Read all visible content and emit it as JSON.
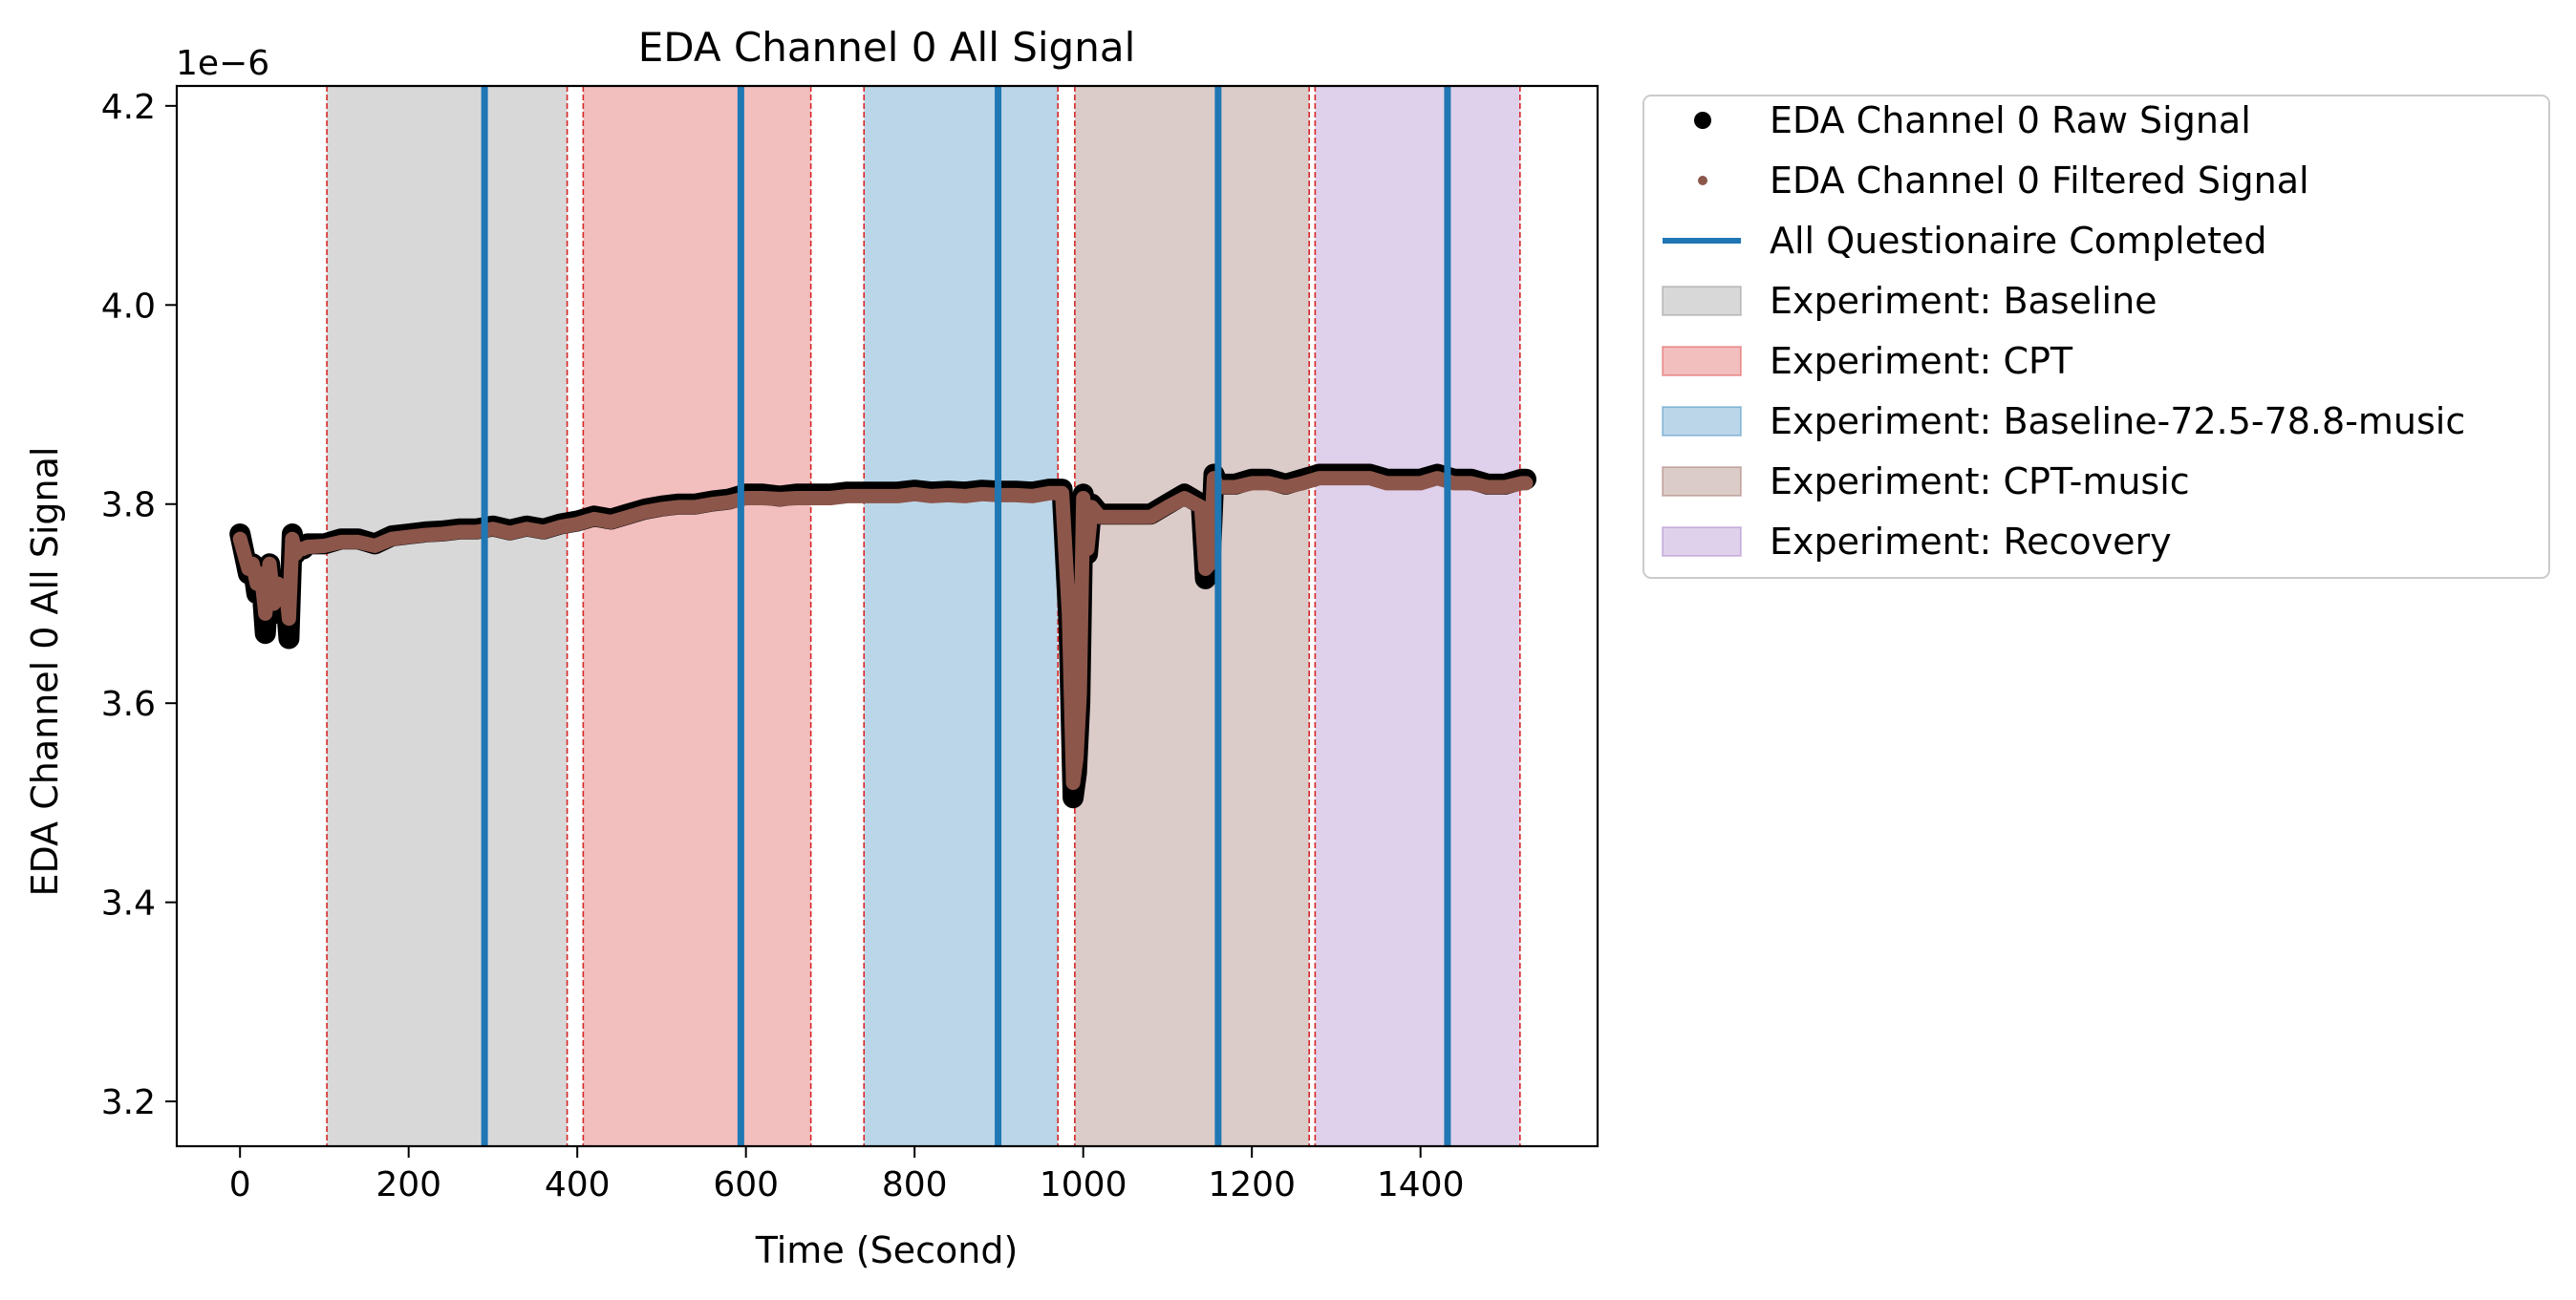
{
  "chart_data": {
    "type": "line",
    "title": "EDA Channel 0 All Signal",
    "xlabel": "Time (Second)",
    "ylabel": "EDA Channel 0 All Signal",
    "y_offset_label": "1e−6",
    "xlim": [
      -75,
      1610
    ],
    "ylim": [
      3.155,
      4.22
    ],
    "x_ticks": [
      0,
      200,
      400,
      600,
      800,
      1000,
      1200,
      1400
    ],
    "y_ticks": [
      3.2,
      3.4,
      3.6,
      3.8,
      4.0,
      4.2
    ],
    "y_tick_labels": [
      "3.2",
      "3.4",
      "3.6",
      "3.8",
      "4.0",
      "4.2"
    ],
    "legend": {
      "position": "outside-upper-right",
      "entries": [
        {
          "label": "EDA Channel 0 Raw Signal",
          "kind": "marker",
          "color": "#000000"
        },
        {
          "label": "EDA Channel 0 Filtered Signal",
          "kind": "small-marker",
          "color": "#8c564b"
        },
        {
          "label": "All Questionaire Completed",
          "kind": "line",
          "color": "#1f77b4"
        },
        {
          "label": "Experiment: Baseline",
          "kind": "patch",
          "color": "#7f7f7f"
        },
        {
          "label": "Experiment: CPT",
          "kind": "patch",
          "color": "#d62728"
        },
        {
          "label": "Experiment: Baseline-72.5-78.8-music",
          "kind": "patch",
          "color": "#1f77b4"
        },
        {
          "label": "Experiment: CPT-music",
          "kind": "patch",
          "color": "#8c564b"
        },
        {
          "label": "Experiment: Recovery",
          "kind": "patch",
          "color": "#9467bd"
        }
      ]
    },
    "regions": [
      {
        "name": "Baseline",
        "start": 103,
        "end": 388,
        "color": "#7f7f7f"
      },
      {
        "name": "CPT",
        "start": 407,
        "end": 677,
        "color": "#d62728"
      },
      {
        "name": "Baseline-72.5-78.8-music",
        "start": 740,
        "end": 970,
        "color": "#1f77b4"
      },
      {
        "name": "CPT-music",
        "start": 990,
        "end": 1268,
        "color": "#8c564b"
      },
      {
        "name": "Recovery",
        "start": 1275,
        "end": 1518,
        "color": "#9467bd"
      }
    ],
    "boundary_lines": [
      103,
      388,
      407,
      677,
      740,
      970,
      990,
      1268,
      1275,
      1518
    ],
    "questionnaire_completed": [
      290,
      594,
      899,
      1160,
      1432
    ],
    "series": [
      {
        "name": "EDA Channel 0 Raw Signal",
        "color": "#000000",
        "x": [
          0,
          5,
          10,
          15,
          20,
          25,
          30,
          35,
          40,
          45,
          50,
          55,
          58,
          62,
          66,
          70,
          75,
          80,
          100,
          120,
          140,
          160,
          180,
          200,
          220,
          240,
          260,
          280,
          300,
          320,
          340,
          360,
          380,
          400,
          420,
          440,
          460,
          480,
          500,
          520,
          540,
          560,
          580,
          600,
          620,
          640,
          660,
          680,
          700,
          720,
          740,
          760,
          780,
          800,
          820,
          840,
          860,
          880,
          900,
          920,
          940,
          960,
          975,
          983,
          988,
          992,
          996,
          1000,
          1005,
          1010,
          1020,
          1040,
          1060,
          1080,
          1100,
          1120,
          1140,
          1145,
          1150,
          1155,
          1160,
          1180,
          1200,
          1220,
          1240,
          1260,
          1280,
          1300,
          1320,
          1340,
          1360,
          1380,
          1400,
          1420,
          1440,
          1460,
          1480,
          1500,
          1520,
          1525
        ],
        "y": [
          3.77,
          3.75,
          3.73,
          3.74,
          3.71,
          3.73,
          3.67,
          3.74,
          3.69,
          3.72,
          3.71,
          3.7,
          3.665,
          3.77,
          3.75,
          3.76,
          3.755,
          3.76,
          3.76,
          3.765,
          3.765,
          3.76,
          3.768,
          3.77,
          3.772,
          3.773,
          3.775,
          3.775,
          3.778,
          3.774,
          3.778,
          3.775,
          3.78,
          3.783,
          3.788,
          3.785,
          3.79,
          3.795,
          3.798,
          3.8,
          3.8,
          3.803,
          3.805,
          3.81,
          3.81,
          3.808,
          3.81,
          3.81,
          3.81,
          3.812,
          3.812,
          3.812,
          3.812,
          3.814,
          3.812,
          3.813,
          3.812,
          3.814,
          3.813,
          3.813,
          3.812,
          3.815,
          3.815,
          3.68,
          3.505,
          3.53,
          3.6,
          3.81,
          3.75,
          3.8,
          3.79,
          3.79,
          3.79,
          3.79,
          3.8,
          3.81,
          3.8,
          3.725,
          3.73,
          3.83,
          3.82,
          3.82,
          3.825,
          3.825,
          3.82,
          3.825,
          3.83,
          3.83,
          3.83,
          3.83,
          3.825,
          3.825,
          3.825,
          3.83,
          3.825,
          3.825,
          3.82,
          3.82,
          3.825,
          3.825
        ]
      },
      {
        "name": "EDA Channel 0 Filtered Signal",
        "color": "#8c564b",
        "x": [
          0,
          5,
          10,
          15,
          20,
          25,
          30,
          35,
          40,
          45,
          50,
          55,
          58,
          62,
          66,
          70,
          75,
          80,
          100,
          120,
          140,
          160,
          180,
          200,
          220,
          240,
          260,
          280,
          300,
          320,
          340,
          360,
          380,
          400,
          420,
          440,
          460,
          480,
          500,
          520,
          540,
          560,
          580,
          600,
          620,
          640,
          660,
          680,
          700,
          720,
          740,
          760,
          780,
          800,
          820,
          840,
          860,
          880,
          900,
          920,
          940,
          960,
          975,
          983,
          988,
          992,
          996,
          1000,
          1005,
          1010,
          1020,
          1040,
          1060,
          1080,
          1100,
          1120,
          1140,
          1145,
          1150,
          1155,
          1160,
          1180,
          1200,
          1220,
          1240,
          1260,
          1280,
          1300,
          1320,
          1340,
          1360,
          1380,
          1400,
          1420,
          1440,
          1460,
          1480,
          1500,
          1520,
          1525
        ],
        "y": [
          3.765,
          3.75,
          3.735,
          3.74,
          3.72,
          3.73,
          3.69,
          3.74,
          3.7,
          3.72,
          3.715,
          3.71,
          3.685,
          3.765,
          3.75,
          3.755,
          3.755,
          3.757,
          3.758,
          3.762,
          3.762,
          3.758,
          3.765,
          3.767,
          3.769,
          3.77,
          3.772,
          3.772,
          3.775,
          3.771,
          3.775,
          3.772,
          3.777,
          3.78,
          3.785,
          3.782,
          3.787,
          3.792,
          3.795,
          3.797,
          3.797,
          3.8,
          3.802,
          3.806,
          3.806,
          3.805,
          3.806,
          3.806,
          3.806,
          3.808,
          3.808,
          3.808,
          3.808,
          3.81,
          3.808,
          3.809,
          3.808,
          3.81,
          3.809,
          3.809,
          3.808,
          3.811,
          3.811,
          3.69,
          3.52,
          3.545,
          3.61,
          3.806,
          3.755,
          3.797,
          3.787,
          3.787,
          3.787,
          3.787,
          3.797,
          3.806,
          3.797,
          3.735,
          3.74,
          3.826,
          3.817,
          3.817,
          3.821,
          3.821,
          3.817,
          3.821,
          3.826,
          3.826,
          3.826,
          3.826,
          3.821,
          3.821,
          3.821,
          3.826,
          3.821,
          3.821,
          3.817,
          3.817,
          3.821,
          3.821
        ]
      }
    ]
  }
}
